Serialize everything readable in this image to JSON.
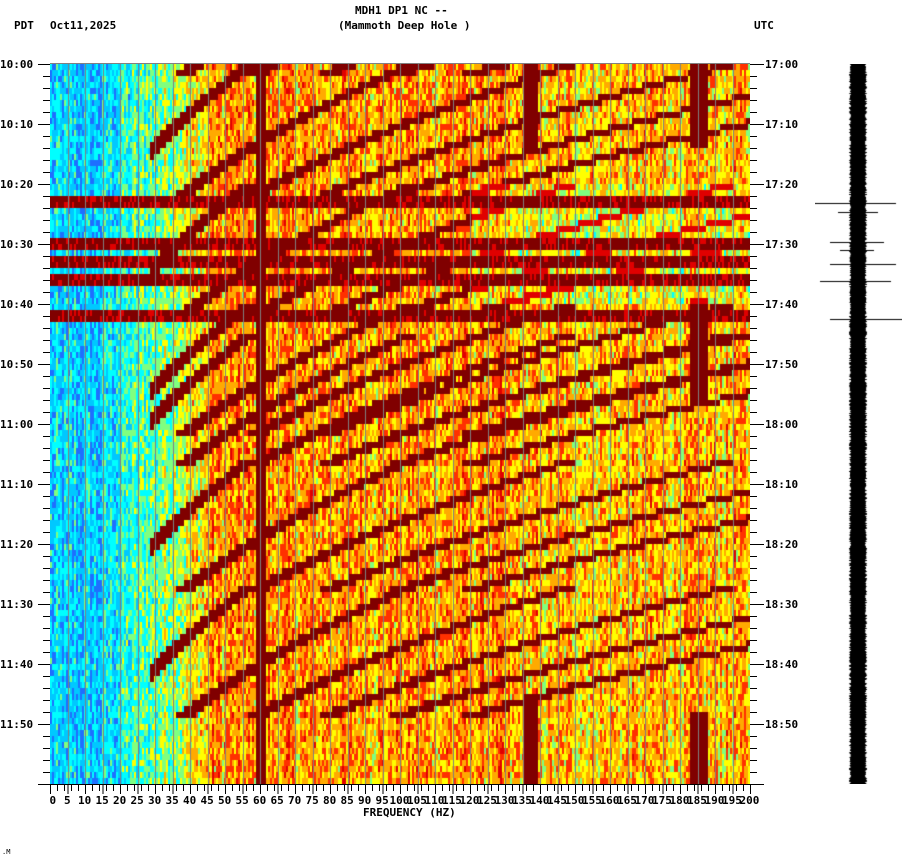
{
  "header": {
    "station_line": "MDH1 DP1 NC --",
    "station_name": "(Mammoth Deep Hole )",
    "left_timezone": "PDT",
    "date": "Oct11,2025",
    "right_timezone": "UTC"
  },
  "footer": {
    "marker": ".M"
  },
  "chart_data": {
    "type": "heatmap",
    "title": "MDH1 DP1 NC -- (Mammoth Deep Hole )",
    "subtitle": "Oct11,2025",
    "xlabel": "FREQUENCY (HZ)",
    "ylabel_left": "PDT",
    "ylabel_right": "UTC",
    "xlim": [
      0,
      200
    ],
    "x_ticks": [
      0,
      5,
      10,
      15,
      20,
      25,
      30,
      35,
      40,
      45,
      50,
      55,
      60,
      65,
      70,
      75,
      80,
      85,
      90,
      95,
      100,
      105,
      110,
      115,
      120,
      125,
      130,
      135,
      140,
      145,
      150,
      155,
      160,
      165,
      170,
      175,
      180,
      185,
      190,
      195,
      200
    ],
    "y_ticks_left": [
      "10:00",
      "10:10",
      "10:20",
      "10:30",
      "10:40",
      "10:50",
      "11:00",
      "11:10",
      "11:20",
      "11:30",
      "11:40",
      "11:50"
    ],
    "y_ticks_right": [
      "17:00",
      "17:10",
      "17:20",
      "17:30",
      "17:40",
      "17:50",
      "18:00",
      "18:10",
      "18:20",
      "18:30",
      "18:40",
      "18:50"
    ],
    "time_range_minutes": 120,
    "colormap": [
      "#1e6fff",
      "#00c8ff",
      "#00ffff",
      "#7fff7f",
      "#ffff00",
      "#ffaa00",
      "#ff3000",
      "#e00000",
      "#800000"
    ],
    "features": {
      "constant_line_hz": 60,
      "horizontal_bands_pdt": [
        "10:23",
        "10:30",
        "10:33",
        "10:36",
        "10:42"
      ],
      "low_freq_region": "blue/cyan below ~20-40 Hz",
      "arc_sweeps_start_times_pdt": [
        "10:00",
        "10:20",
        "10:40",
        "11:00",
        "11:05",
        "11:26",
        "11:47"
      ],
      "vertical_features_hz": [
        90,
        137,
        185
      ]
    },
    "grid": true,
    "legend": null
  },
  "seismogram": {
    "spikes_pdt": [
      "10:23",
      "10:25",
      "10:31",
      "10:32",
      "10:34",
      "10:36",
      "10:42"
    ]
  }
}
